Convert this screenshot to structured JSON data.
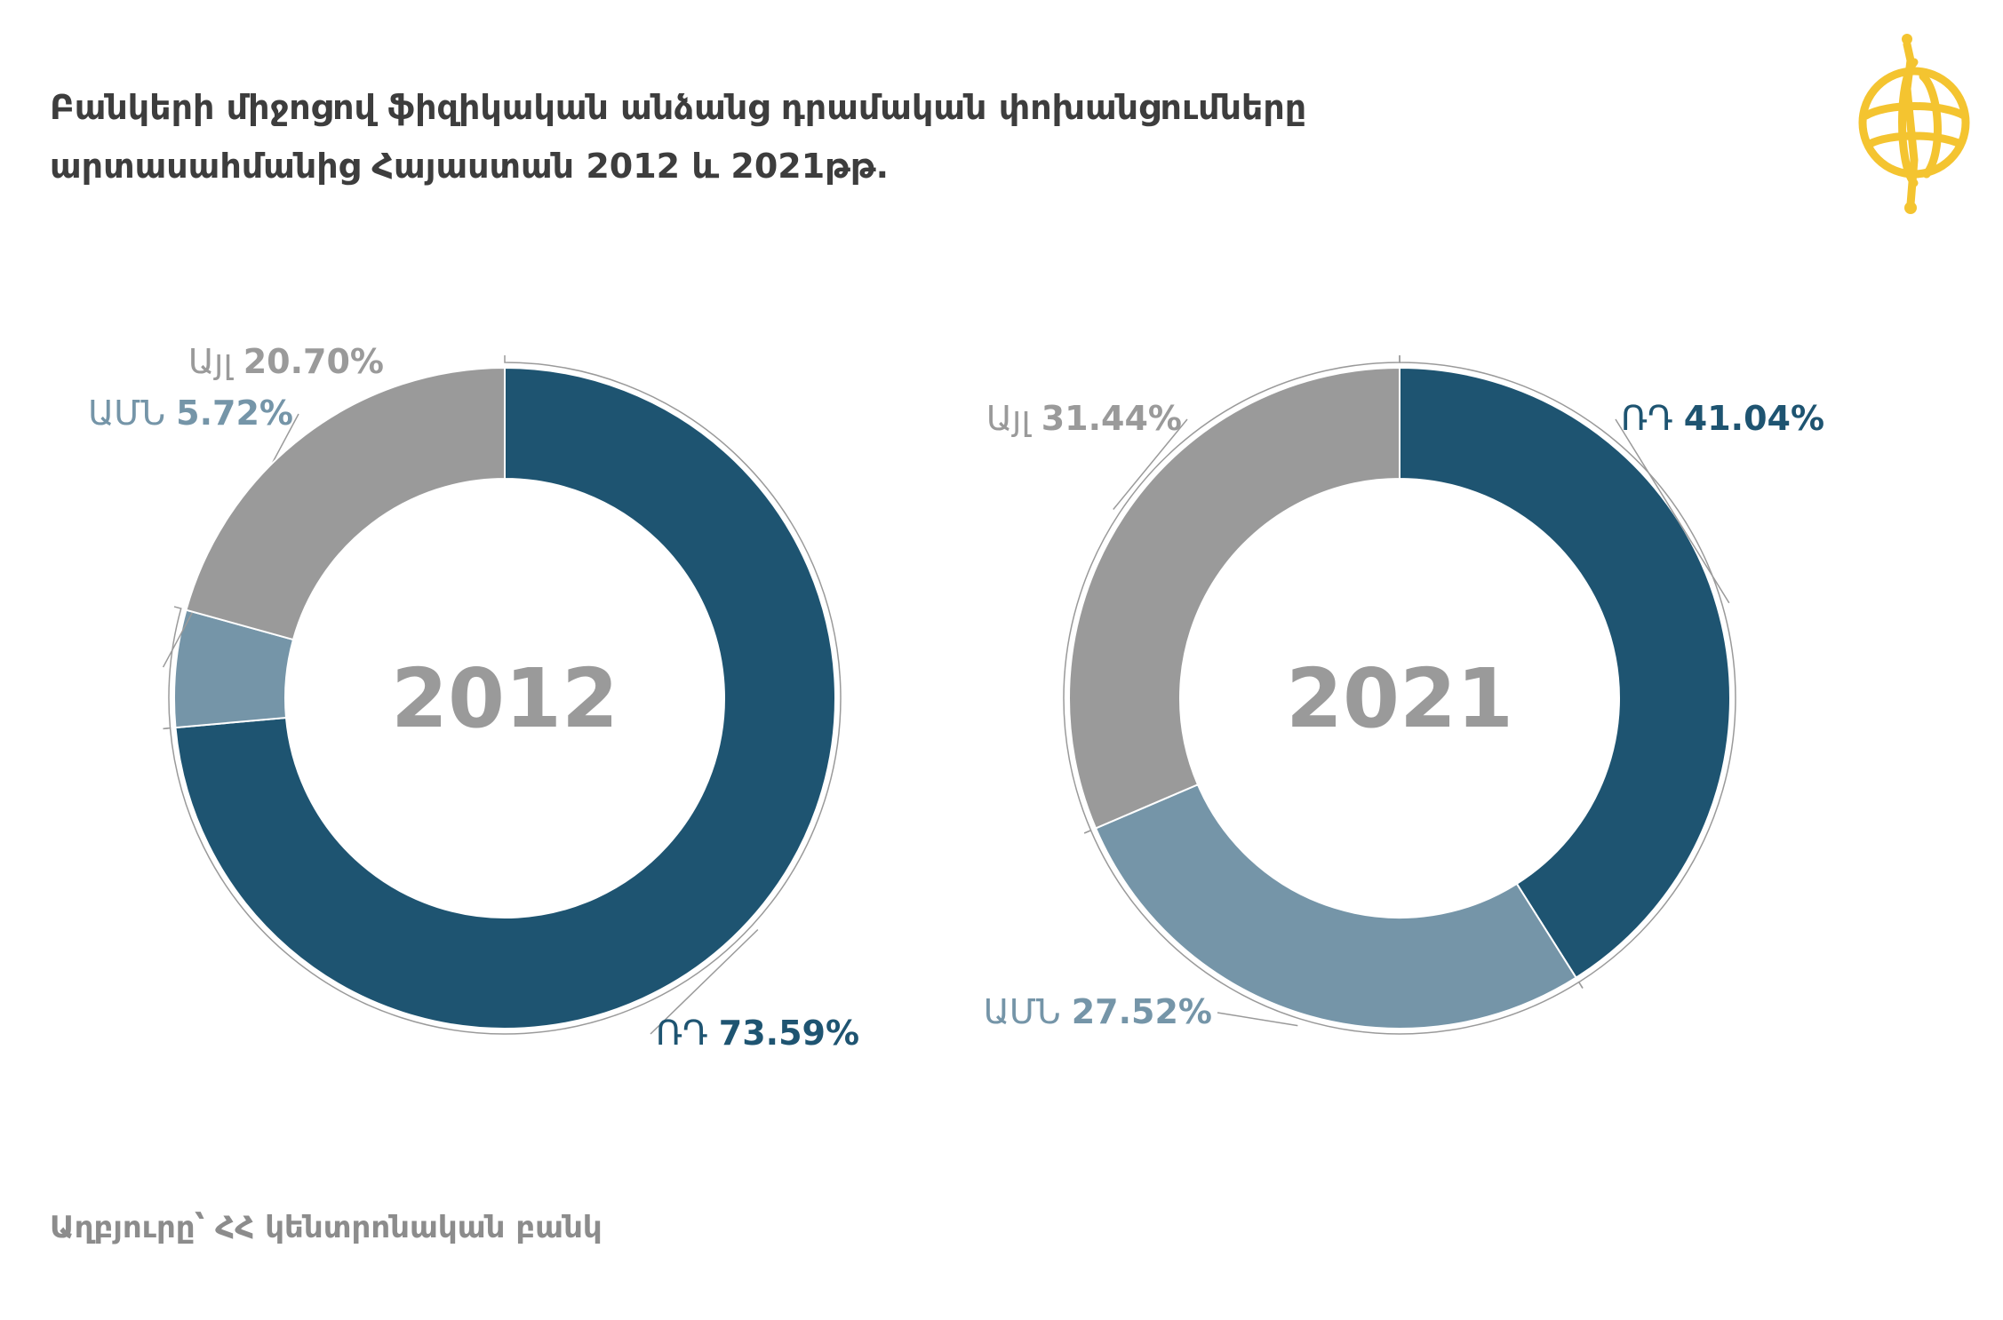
{
  "title": {
    "line1": "Բանկերի միջոցով ֆիզիկական անձանց դրամական փոխանցումները",
    "line2": "արտասահմանից Հայաստան 2012 և 2021թթ."
  },
  "source": "Աղբյուրը՝ ՀՀ կենտրոնական բանկ",
  "logo_icon": "globe-logo-icon",
  "colors": {
    "ru": "#1e5471",
    "us": "#7595a8",
    "other": "#9a9a9a",
    "center_text": "#9a9a9a",
    "logo": "#f4c430"
  },
  "chart_data": [
    {
      "type": "pie",
      "center_label": "2012",
      "slices": [
        {
          "name": "ՌԴ",
          "value": 73.59,
          "label": "73.59%",
          "color_key": "ru"
        },
        {
          "name": "ԱՄՆ",
          "value": 5.72,
          "label": "5.72%",
          "color_key": "us"
        },
        {
          "name": "Այլ",
          "value": 20.7,
          "label": "20.70%",
          "color_key": "other"
        }
      ]
    },
    {
      "type": "pie",
      "center_label": "2021",
      "slices": [
        {
          "name": "ՌԴ",
          "value": 41.04,
          "label": "41.04%",
          "color_key": "ru"
        },
        {
          "name": "ԱՄՆ",
          "value": 27.52,
          "label": "27.52%",
          "color_key": "us"
        },
        {
          "name": "Այլ",
          "value": 31.44,
          "label": "31.44%",
          "color_key": "other"
        }
      ]
    }
  ]
}
